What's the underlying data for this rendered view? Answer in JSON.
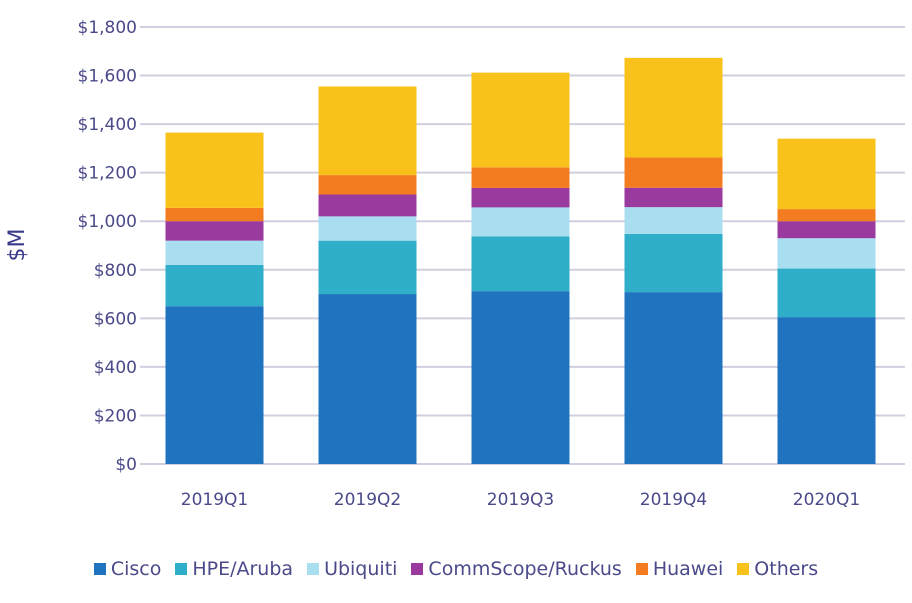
{
  "chart_data": {
    "type": "bar",
    "stacked": true,
    "title": "",
    "xlabel": "",
    "ylabel": "$M",
    "ylim": [
      0,
      1800
    ],
    "yticks": [
      "$0",
      "$200",
      "$400",
      "$600",
      "$800",
      "$1,000",
      "$1,200",
      "$1,400",
      "$1,600",
      "$1,800"
    ],
    "ytick_values": [
      0,
      200,
      400,
      600,
      800,
      1000,
      1200,
      1400,
      1600,
      1800
    ],
    "grid": true,
    "legend_position": "bottom",
    "categories": [
      "2019Q1",
      "2019Q2",
      "2019Q3",
      "2019Q4",
      "2020Q1"
    ],
    "series": [
      {
        "name": "Cisco",
        "color": "#1f73bf",
        "values": [
          650,
          700,
          712,
          708,
          605
        ]
      },
      {
        "name": "HPE/Aruba",
        "color": "#2eaec8",
        "values": [
          170,
          220,
          225,
          240,
          200
        ]
      },
      {
        "name": "Ubiquiti",
        "color": "#a8def0",
        "values": [
          100,
          100,
          120,
          110,
          125
        ]
      },
      {
        "name": "CommScope/Ruckus",
        "color": "#9a3a9f",
        "values": [
          80,
          90,
          80,
          80,
          70
        ]
      },
      {
        "name": "Huawei",
        "color": "#f47c20",
        "values": [
          55,
          80,
          85,
          125,
          50
        ]
      },
      {
        "name": "Others",
        "color": "#f8c21a",
        "values": [
          310,
          365,
          390,
          410,
          290
        ]
      }
    ]
  }
}
